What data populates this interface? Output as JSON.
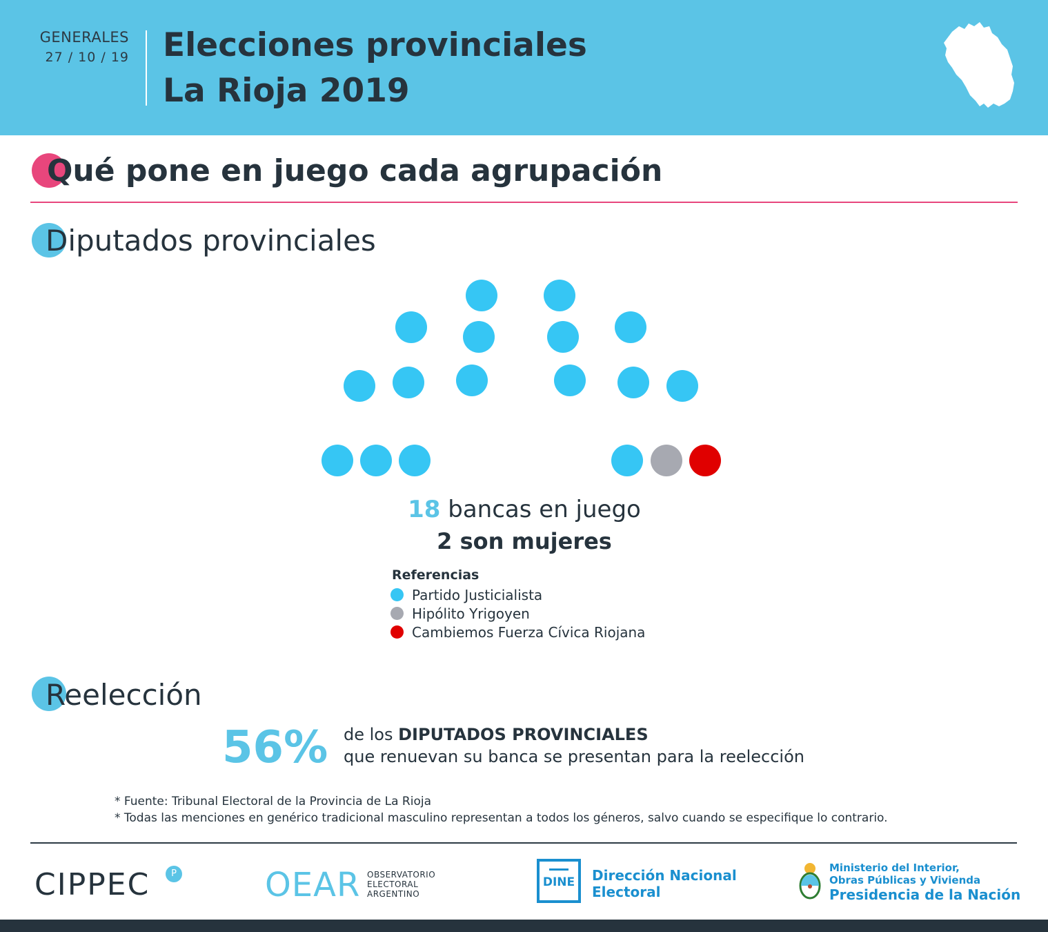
{
  "header": {
    "election_type": "GENERALES",
    "date": "27 / 10 / 19",
    "title_line1": "Elecciones provinciales",
    "title_line2": "La Rioja 2019"
  },
  "sections": {
    "main_title": "Qué pone en juego cada agrupación",
    "diputados_title": "Diputados provinciales",
    "reeleccion_title": "Reelección"
  },
  "seats": {
    "total": "18",
    "total_text": "bancas en juego",
    "women_text": "2 son mujeres",
    "parties": [
      {
        "name": "Partido Justicialista",
        "color": "#36c6f4",
        "seats": 16
      },
      {
        "name": "Hipólito Yrigoyen",
        "color": "#a7a9b1",
        "seats": 1
      },
      {
        "name": "Cambiemos Fuerza Cívica Riojana",
        "color": "#e00000",
        "seats": 1
      }
    ]
  },
  "legend": {
    "title": "Referencias",
    "items": [
      "Partido Justicialista",
      "Hipólito Yrigoyen",
      "Cambiemos Fuerza Cívica Riojana"
    ]
  },
  "reeleccion": {
    "percent": "56%",
    "line1_pre": "de los",
    "line1_bold": "DIPUTADOS PROVINCIALES",
    "line2": "que renuevan su banca se presentan para la reelección"
  },
  "notes": [
    "* Fuente: Tribunal Electoral de la Provincia de La Rioja",
    "* Todas las menciones en genérico tradicional masculino representan a todos los géneros, salvo cuando se especifique lo contrario."
  ],
  "footer": {
    "cippec": "CIPPEC",
    "cippec_badge": "P",
    "oear": "OEAR",
    "oear_sub1": "OBSERVATORIO",
    "oear_sub2": "ELECTORAL",
    "oear_sub3": "ARGENTINO",
    "dine_abbr": "DINE",
    "dine_line1": "Dirección Nacional",
    "dine_line2": "Electoral",
    "min_line1": "Ministerio del Interior,",
    "min_line2": "Obras Públicas y Vivienda",
    "min_line3": "Presidencia de la Nación"
  },
  "colors": {
    "accent": "#5bc4e6",
    "pink": "#e8467c",
    "dark": "#26333d"
  }
}
